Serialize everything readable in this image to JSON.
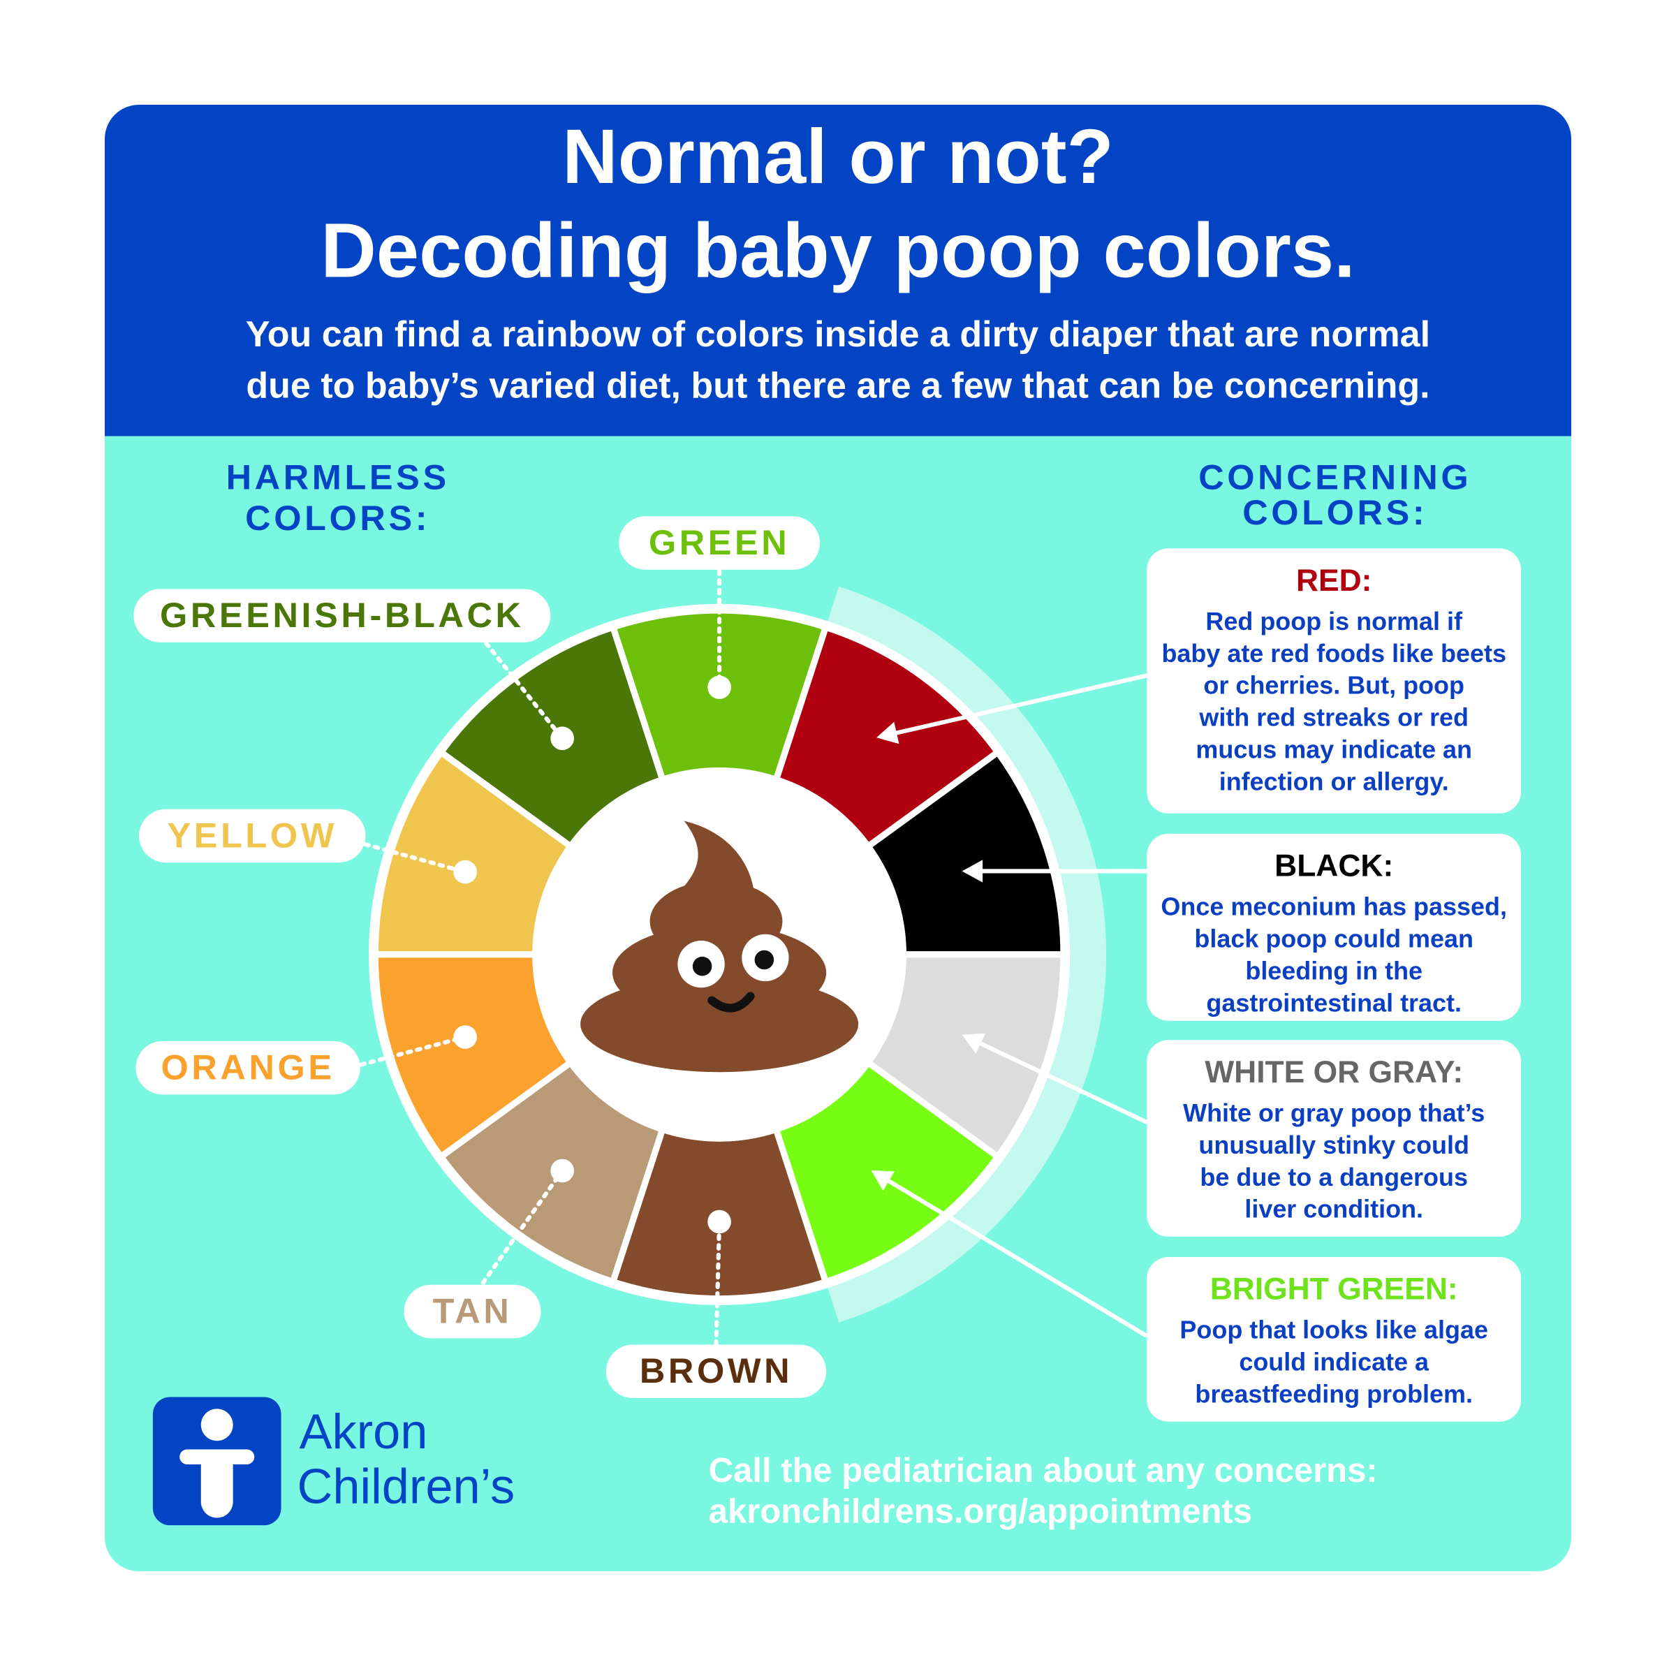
{
  "header": {
    "title": [
      "Normal or not?",
      "Decoding baby poop colors."
    ],
    "subtitle": [
      "You can find a rainbow of colors inside a dirty diaper that are normal",
      "due to baby’s varied diet, but there are a few that can be concerning."
    ]
  },
  "harmless_heading": [
    "HARMLESS",
    "COLORS:"
  ],
  "concerning_heading": [
    "CONCERNING",
    "COLORS:"
  ],
  "harmless_colors": [
    {
      "label": "GREEN",
      "fill": "#6cc00a",
      "text_color": "#6cc00a"
    },
    {
      "label": "GREENISH-BLACK",
      "fill": "#4b7708",
      "text_color": "#4b7708"
    },
    {
      "label": "YELLOW",
      "fill": "#f0c54e",
      "text_color": "#f0c54e"
    },
    {
      "label": "ORANGE",
      "fill": "#fba12e",
      "text_color": "#fba12e"
    },
    {
      "label": "TAN",
      "fill": "#b89a77",
      "text_color": "#b89a77"
    },
    {
      "label": "BROWN",
      "fill": "#834a2b",
      "text_color": "#5b2f0e"
    }
  ],
  "concerning_colors": [
    {
      "title": "RED:",
      "fill": "#b0000f",
      "text_color": "#b0000f",
      "text": [
        "Red poop is normal if",
        "baby ate red foods like beets",
        "or cherries. But, poop",
        "with red streaks or red",
        "mucus may indicate an",
        "infection or allergy."
      ]
    },
    {
      "title": "BLACK:",
      "fill": "#000000",
      "text_color": "#000000",
      "text": [
        "Once meconium has passed,",
        "black poop could mean",
        "bleeding in the",
        "gastrointestinal tract."
      ]
    },
    {
      "title": "WHITE OR GRAY:",
      "fill": "#dcdcdc",
      "text_color": "#666666",
      "text": [
        "White or gray poop that’s",
        "unusually stinky could",
        "be due to a dangerous",
        "liver condition."
      ]
    },
    {
      "title": "BRIGHT GREEN:",
      "fill": "#77fc13",
      "text_color": "#6ee21a",
      "text": [
        "Poop that looks like algae",
        "could indicate a",
        "breastfeeding problem."
      ]
    }
  ],
  "logo": [
    "Akron",
    "Children’s"
  ],
  "footer": [
    "Call the pediatrician about any concerns:",
    "akronchildrens.org/appointments"
  ]
}
